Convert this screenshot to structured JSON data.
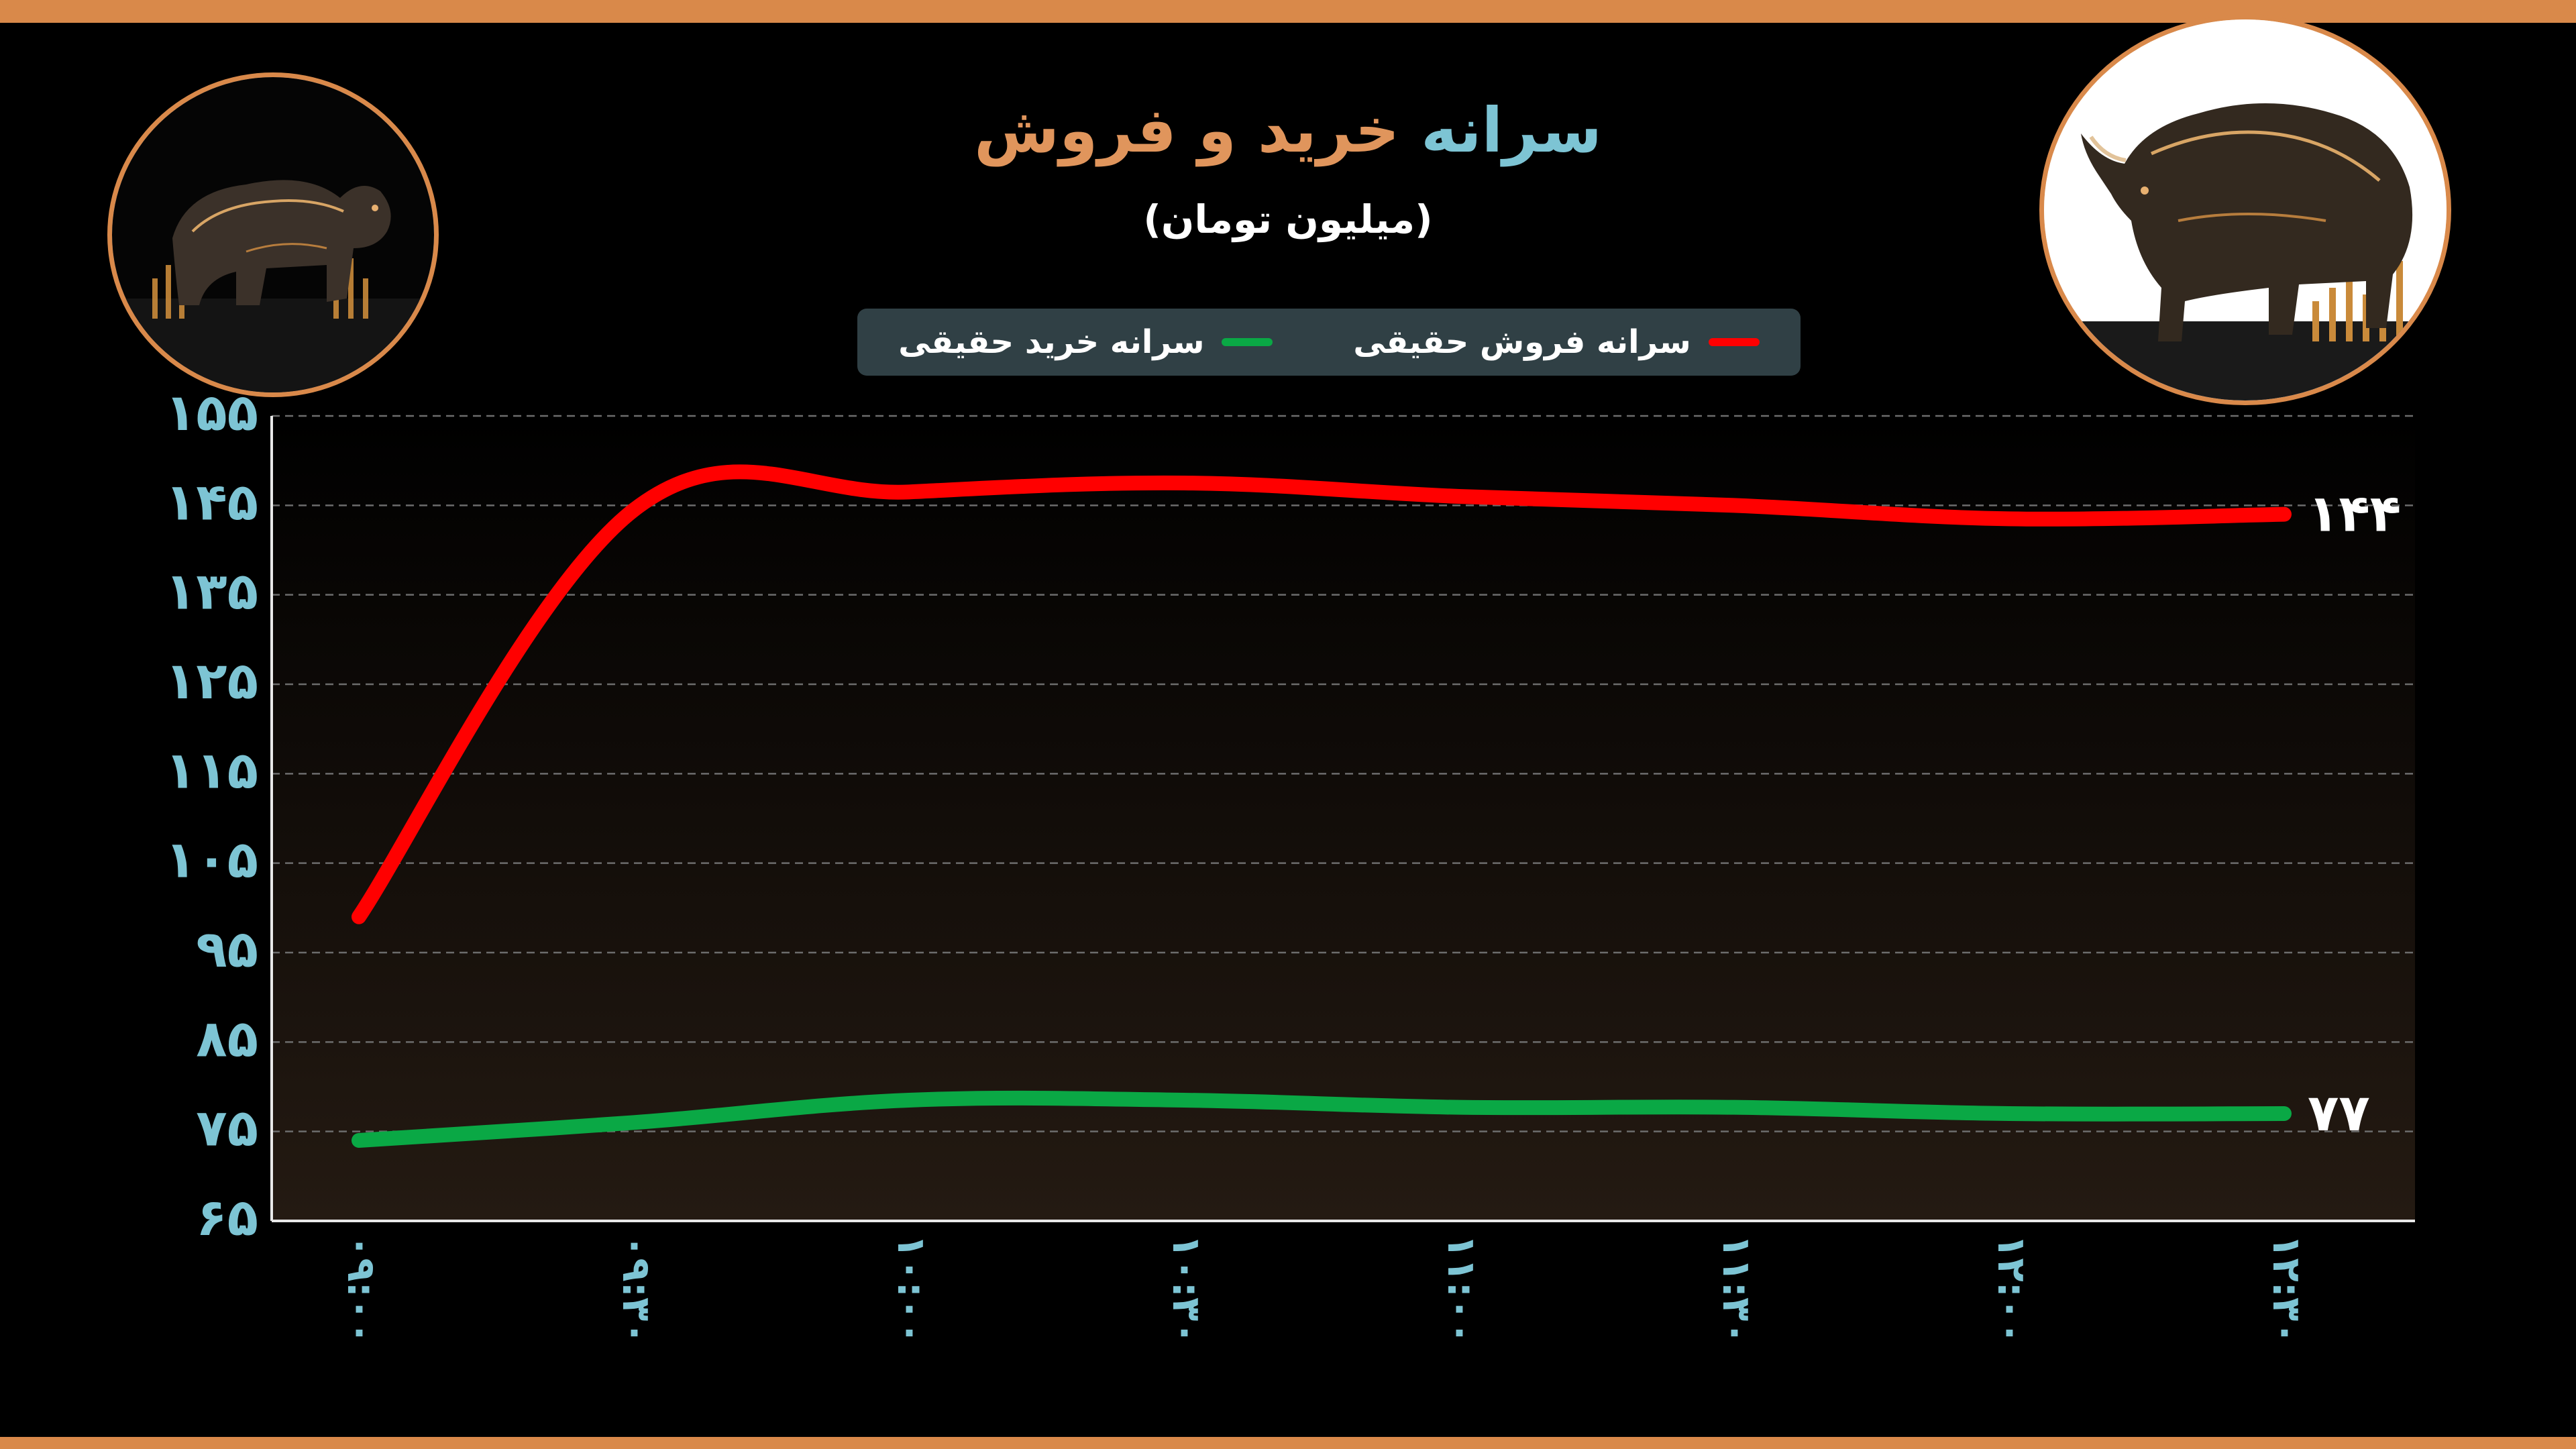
{
  "title": {
    "part_a": "سرانه",
    "part_b": "خرید و فروش"
  },
  "subtitle": "(میلیون تومان)",
  "legend": {
    "sell_label": "سرانه فروش حقیقی",
    "buy_label": "سرانه خرید حقیقی"
  },
  "images": {
    "left": "bear-sculpture",
    "right": "bull-sculpture"
  },
  "colors": {
    "sell": "#ff0000",
    "buy": "#0aa845",
    "accent": "#d9894a",
    "title_a": "#7dc4d4",
    "title_b": "#e0955c",
    "tick": "#7dc4d4",
    "legend_bg": "#304045"
  },
  "chart_data": {
    "type": "line",
    "x": [
      "09:00",
      "09:30",
      "10:00",
      "10:30",
      "11:00",
      "11:30",
      "12:00",
      "12:30"
    ],
    "x_tick_labels": [
      "۰۹:۰۰",
      "۰۹:۳۰",
      "۱۰:۰۰",
      "۱۰:۳۰",
      "۱۱:۰۰",
      "۱۱:۳۰",
      "۱۲:۰۰",
      "۱۲:۳۰"
    ],
    "ylim": [
      65,
      155
    ],
    "y_ticks": [
      65,
      75,
      85,
      95,
      105,
      115,
      125,
      135,
      145,
      155
    ],
    "y_tick_labels": [
      "۶۵",
      "۷۵",
      "۸۵",
      "۹۵",
      "۱۰۵",
      "۱۱۵",
      "۱۲۵",
      "۱۳۵",
      "۱۴۵",
      "۱۵۵"
    ],
    "grid": true,
    "legend_position": "top-center",
    "series": [
      {
        "name": "سرانه فروش حقیقی",
        "key": "sell",
        "values": [
          99,
          144.5,
          146.5,
          147.5,
          146,
          145,
          143.5,
          144
        ],
        "end_label": "۱۴۴"
      },
      {
        "name": "سرانه خرید حقیقی",
        "key": "buy",
        "values": [
          74,
          76,
          78.5,
          78.5,
          77.7,
          77.7,
          77,
          77
        ],
        "end_label": "۷۷"
      }
    ]
  }
}
